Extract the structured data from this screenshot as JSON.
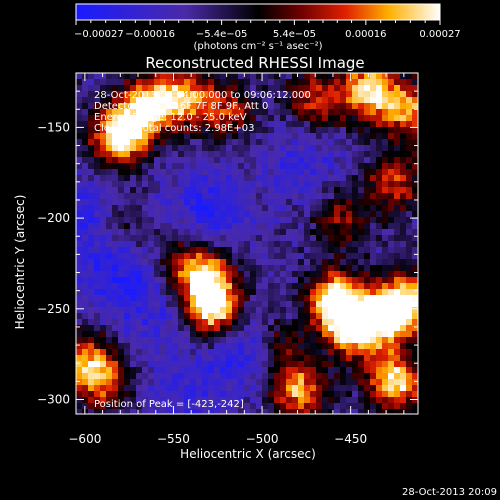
{
  "chart_data": {
    "type": "heatmap",
    "title": "Reconstructed RHESSI Image",
    "xlabel": "Heliocentric X (arcsec)",
    "ylabel": "Heliocentric Y (arcsec)",
    "xlim": [
      -605,
      -412
    ],
    "ylim": [
      -308,
      -120
    ],
    "x_ticks": [
      -600,
      -550,
      -500,
      -450
    ],
    "x_tick_labels": [
      "−600",
      "−550",
      "−500",
      "−450"
    ],
    "y_ticks": [
      -300,
      -250,
      -200,
      -150
    ],
    "y_tick_labels": [
      "−300",
      "−250",
      "−200",
      "−150"
    ],
    "colorbar": {
      "range": [
        -0.00027,
        0.00027
      ],
      "tick_values": [
        -0.00027,
        -0.00016,
        -5.4e-05,
        5.4e-05,
        0.00016,
        0.00027
      ],
      "tick_labels": [
        "−0.00027",
        "−0.00016",
        "−5.4e−05",
        "5.4e−05",
        "0.00016",
        "0.00027"
      ],
      "unit_label": "(photons cm⁻² s⁻¹ asec⁻²)"
    },
    "annotations": [
      "28-Oct-2013 09:04:00.000 to 09:06:12.000",
      "Detectors: 3F 5F 6F 7F 8F 9F, Att 0",
      "Energy Range: 12.0 - 25.0 keV",
      "Clean     Total counts: 2.98E+03"
    ],
    "peak_label": "Position of Peak = [-423,-242]",
    "peak_position": [
      -423,
      -242
    ],
    "hot_spots": [
      {
        "x": -580,
        "y": -155,
        "intensity": 1.0
      },
      {
        "x": -565,
        "y": -137,
        "intensity": 0.8
      },
      {
        "x": -545,
        "y": -134,
        "intensity": 0.7
      },
      {
        "x": -520,
        "y": -140,
        "intensity": 0.5
      },
      {
        "x": -470,
        "y": -135,
        "intensity": 0.55
      },
      {
        "x": -440,
        "y": -130,
        "intensity": 0.85
      },
      {
        "x": -418,
        "y": -140,
        "intensity": 0.7
      },
      {
        "x": -425,
        "y": -180,
        "intensity": 0.55
      },
      {
        "x": -530,
        "y": -232,
        "intensity": 0.65
      },
      {
        "x": -528,
        "y": -250,
        "intensity": 0.95
      },
      {
        "x": -545,
        "y": -225,
        "intensity": 0.45
      },
      {
        "x": -458,
        "y": -245,
        "intensity": 1.0
      },
      {
        "x": -448,
        "y": -262,
        "intensity": 0.85
      },
      {
        "x": -430,
        "y": -255,
        "intensity": 0.8
      },
      {
        "x": -418,
        "y": -245,
        "intensity": 0.75
      },
      {
        "x": -425,
        "y": -290,
        "intensity": 0.9
      },
      {
        "x": -480,
        "y": -295,
        "intensity": 0.75
      },
      {
        "x": -600,
        "y": -278,
        "intensity": 0.6
      },
      {
        "x": -590,
        "y": -290,
        "intensity": 0.55
      },
      {
        "x": -455,
        "y": -200,
        "intensity": 0.4
      },
      {
        "x": -490,
        "y": -270,
        "intensity": 0.35
      },
      {
        "x": -580,
        "y": -205,
        "intensity": 0.3
      }
    ],
    "cold_spots": [
      {
        "x": -530,
        "y": -195,
        "intensity": 0.9
      },
      {
        "x": -580,
        "y": -230,
        "intensity": 0.8
      },
      {
        "x": -600,
        "y": -200,
        "intensity": 0.8
      },
      {
        "x": -510,
        "y": -275,
        "intensity": 0.85
      },
      {
        "x": -475,
        "y": -170,
        "intensity": 0.6
      },
      {
        "x": -545,
        "y": -300,
        "intensity": 0.6
      },
      {
        "x": -560,
        "y": -255,
        "intensity": 0.5
      }
    ]
  },
  "footer": {
    "timestamp": "28-Oct-2013 20:09"
  }
}
